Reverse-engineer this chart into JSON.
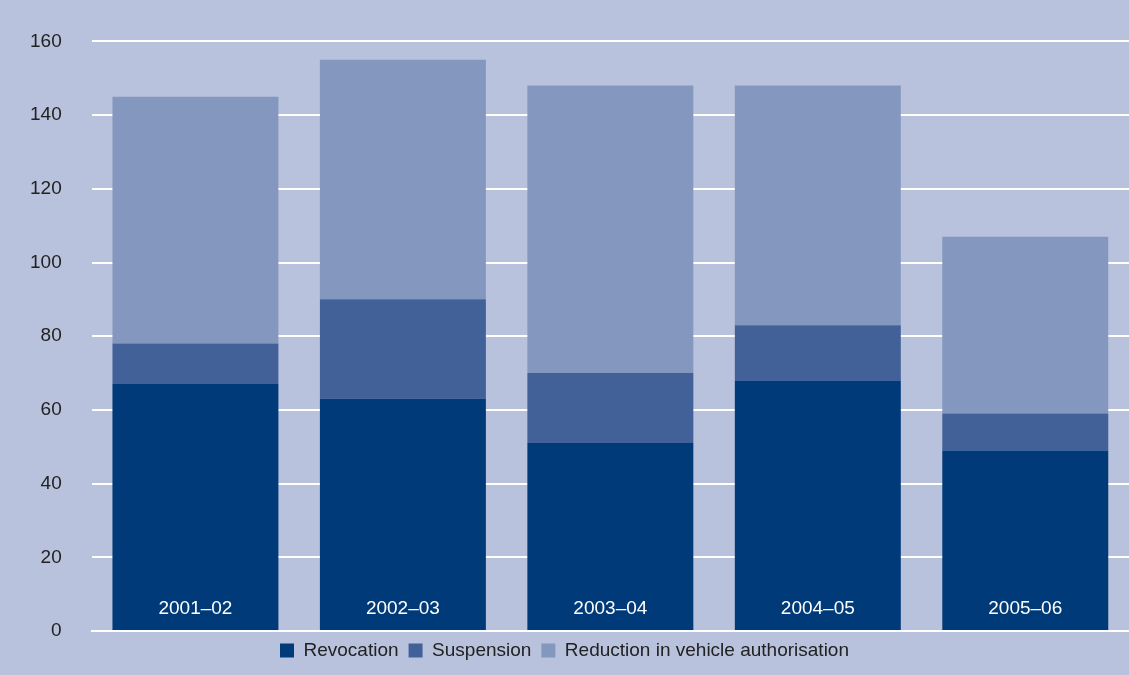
{
  "chart_data": {
    "type": "bar",
    "stacked": true,
    "categories": [
      "2001–02",
      "2002–03",
      "2003–04",
      "2004–05",
      "2005–06"
    ],
    "series": [
      {
        "name": "Revocation",
        "color": "#003a78",
        "values": [
          67,
          63,
          51,
          68,
          49
        ]
      },
      {
        "name": "Suspension",
        "color": "#416198",
        "values": [
          11,
          27,
          19,
          15,
          10
        ]
      },
      {
        "name": "Reduction in vehicle authorisation",
        "color": "#8497bf",
        "values": [
          67,
          65,
          78,
          65,
          48
        ]
      }
    ],
    "ylim": [
      0,
      160
    ],
    "yticks": [
      0,
      20,
      40,
      60,
      80,
      100,
      120,
      140,
      160
    ],
    "grid": "y",
    "legend": "bottom"
  }
}
